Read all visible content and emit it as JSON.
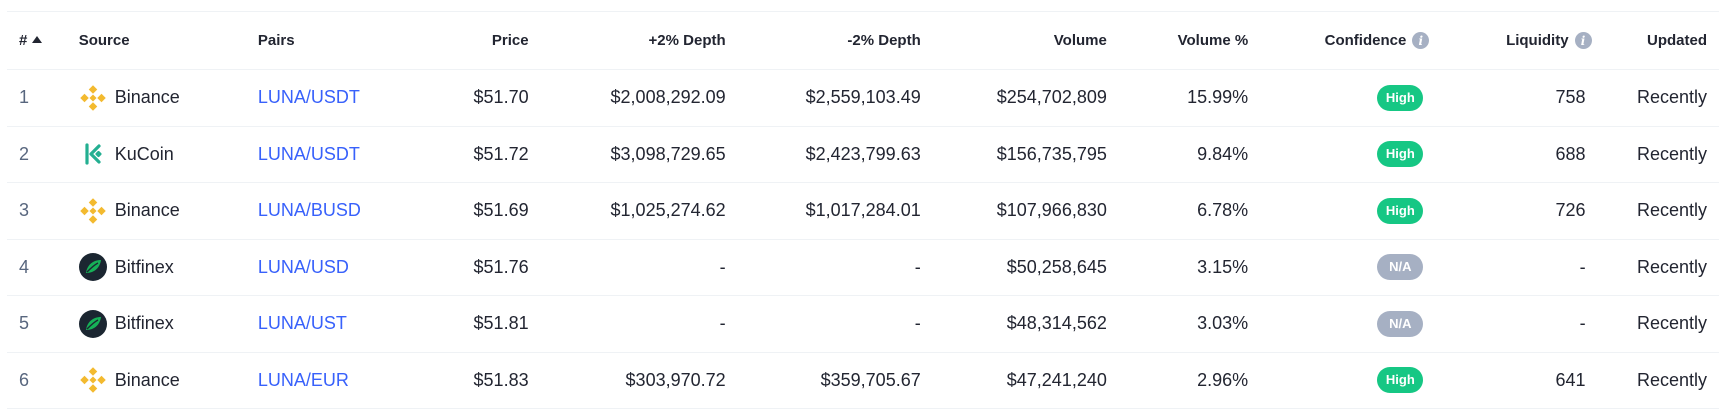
{
  "headers": {
    "rank": "#",
    "source": "Source",
    "pairs": "Pairs",
    "price": "Price",
    "plus_depth": "+2% Depth",
    "minus_depth": "-2% Depth",
    "volume": "Volume",
    "volume_pct": "Volume %",
    "confidence": "Confidence",
    "liquidity": "Liquidity",
    "updated": "Updated"
  },
  "colors": {
    "pair_link": "#3861fb",
    "badge_high": "#16c784",
    "badge_na": "#a6b0c3",
    "binance": "#f3ba2f",
    "kucoin": "#23af91",
    "bitfinex_bg": "#1b2631",
    "bitfinex_leaf": "#16b157"
  },
  "rows": [
    {
      "rank": "1",
      "source": "Binance",
      "logo": "binance-icon",
      "pair": "LUNA/USDT",
      "price": "$51.70",
      "plus_depth": "$2,008,292.09",
      "minus_depth": "$2,559,103.49",
      "volume": "$254,702,809",
      "volume_pct": "15.99%",
      "confidence": "High",
      "liquidity": "758",
      "updated": "Recently"
    },
    {
      "rank": "2",
      "source": "KuCoin",
      "logo": "kucoin-icon",
      "pair": "LUNA/USDT",
      "price": "$51.72",
      "plus_depth": "$3,098,729.65",
      "minus_depth": "$2,423,799.63",
      "volume": "$156,735,795",
      "volume_pct": "9.84%",
      "confidence": "High",
      "liquidity": "688",
      "updated": "Recently"
    },
    {
      "rank": "3",
      "source": "Binance",
      "logo": "binance-icon",
      "pair": "LUNA/BUSD",
      "price": "$51.69",
      "plus_depth": "$1,025,274.62",
      "minus_depth": "$1,017,284.01",
      "volume": "$107,966,830",
      "volume_pct": "6.78%",
      "confidence": "High",
      "liquidity": "726",
      "updated": "Recently"
    },
    {
      "rank": "4",
      "source": "Bitfinex",
      "logo": "bitfinex-icon",
      "pair": "LUNA/USD",
      "price": "$51.76",
      "plus_depth": "-",
      "minus_depth": "-",
      "volume": "$50,258,645",
      "volume_pct": "3.15%",
      "confidence": "N/A",
      "liquidity": "-",
      "updated": "Recently"
    },
    {
      "rank": "5",
      "source": "Bitfinex",
      "logo": "bitfinex-icon",
      "pair": "LUNA/UST",
      "price": "$51.81",
      "plus_depth": "-",
      "minus_depth": "-",
      "volume": "$48,314,562",
      "volume_pct": "3.03%",
      "confidence": "N/A",
      "liquidity": "-",
      "updated": "Recently"
    },
    {
      "rank": "6",
      "source": "Binance",
      "logo": "binance-icon",
      "pair": "LUNA/EUR",
      "price": "$51.83",
      "plus_depth": "$303,970.72",
      "minus_depth": "$359,705.67",
      "volume": "$47,241,240",
      "volume_pct": "2.96%",
      "confidence": "High",
      "liquidity": "641",
      "updated": "Recently"
    }
  ]
}
